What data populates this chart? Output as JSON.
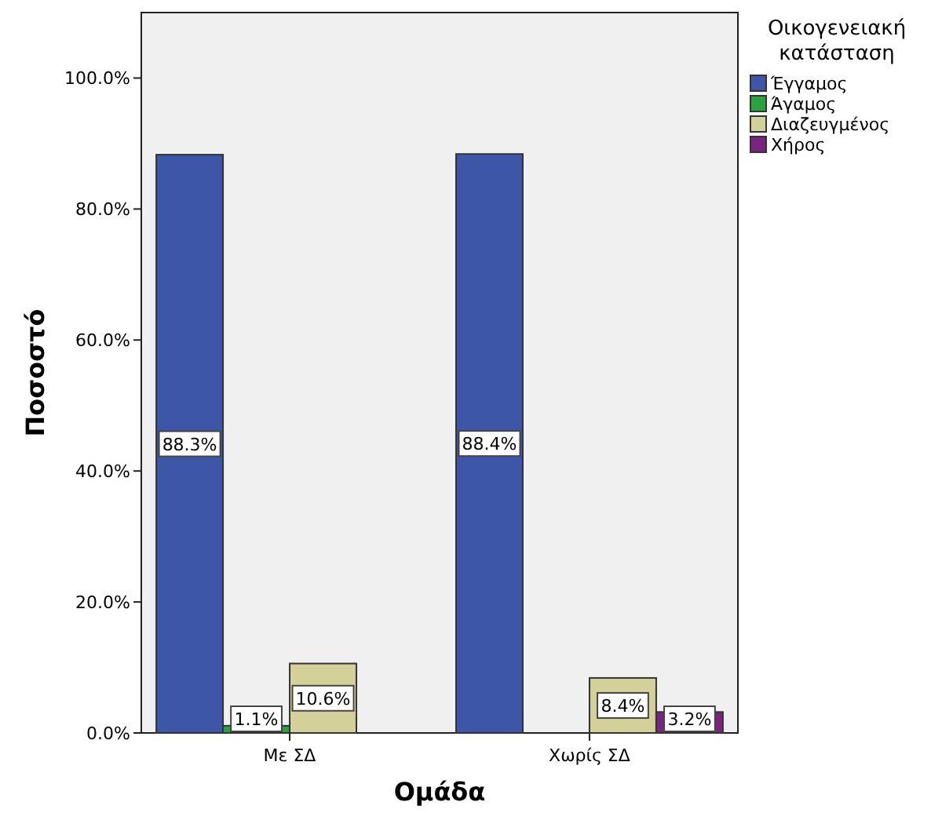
{
  "chart_data": {
    "type": "bar",
    "xlabel": "Ομάδα",
    "ylabel": "Ποσοστό",
    "legend_title": "Οικογενειακή κατάσταση",
    "categories": [
      "Με ΣΔ",
      "Χωρίς ΣΔ"
    ],
    "series": [
      {
        "name": "Έγγαμος",
        "color": "#3d56a8",
        "values": [
          88.3,
          88.4
        ],
        "value_labels": [
          "88.3%",
          "88.4%"
        ]
      },
      {
        "name": "Άγαμος",
        "color": "#2aa33e",
        "values": [
          1.1,
          null
        ],
        "value_labels": [
          "1.1%",
          null
        ]
      },
      {
        "name": "Διαζευγμένος",
        "color": "#d4d09a",
        "values": [
          10.6,
          8.4
        ],
        "value_labels": [
          "10.6%",
          "8.4%"
        ]
      },
      {
        "name": "Χήρος",
        "color": "#7b2382",
        "values": [
          null,
          3.2
        ],
        "value_labels": [
          null,
          "3.2%"
        ]
      }
    ],
    "ylim": [
      0,
      110
    ],
    "yticks": [
      {
        "value": 0,
        "label": "0.0%"
      },
      {
        "value": 20,
        "label": "20.0%"
      },
      {
        "value": 40,
        "label": "40.0%"
      },
      {
        "value": 60,
        "label": "60.0%"
      },
      {
        "value": 80,
        "label": "80.0%"
      },
      {
        "value": 100,
        "label": "100.0%"
      }
    ],
    "grid": false,
    "legend": "right"
  }
}
